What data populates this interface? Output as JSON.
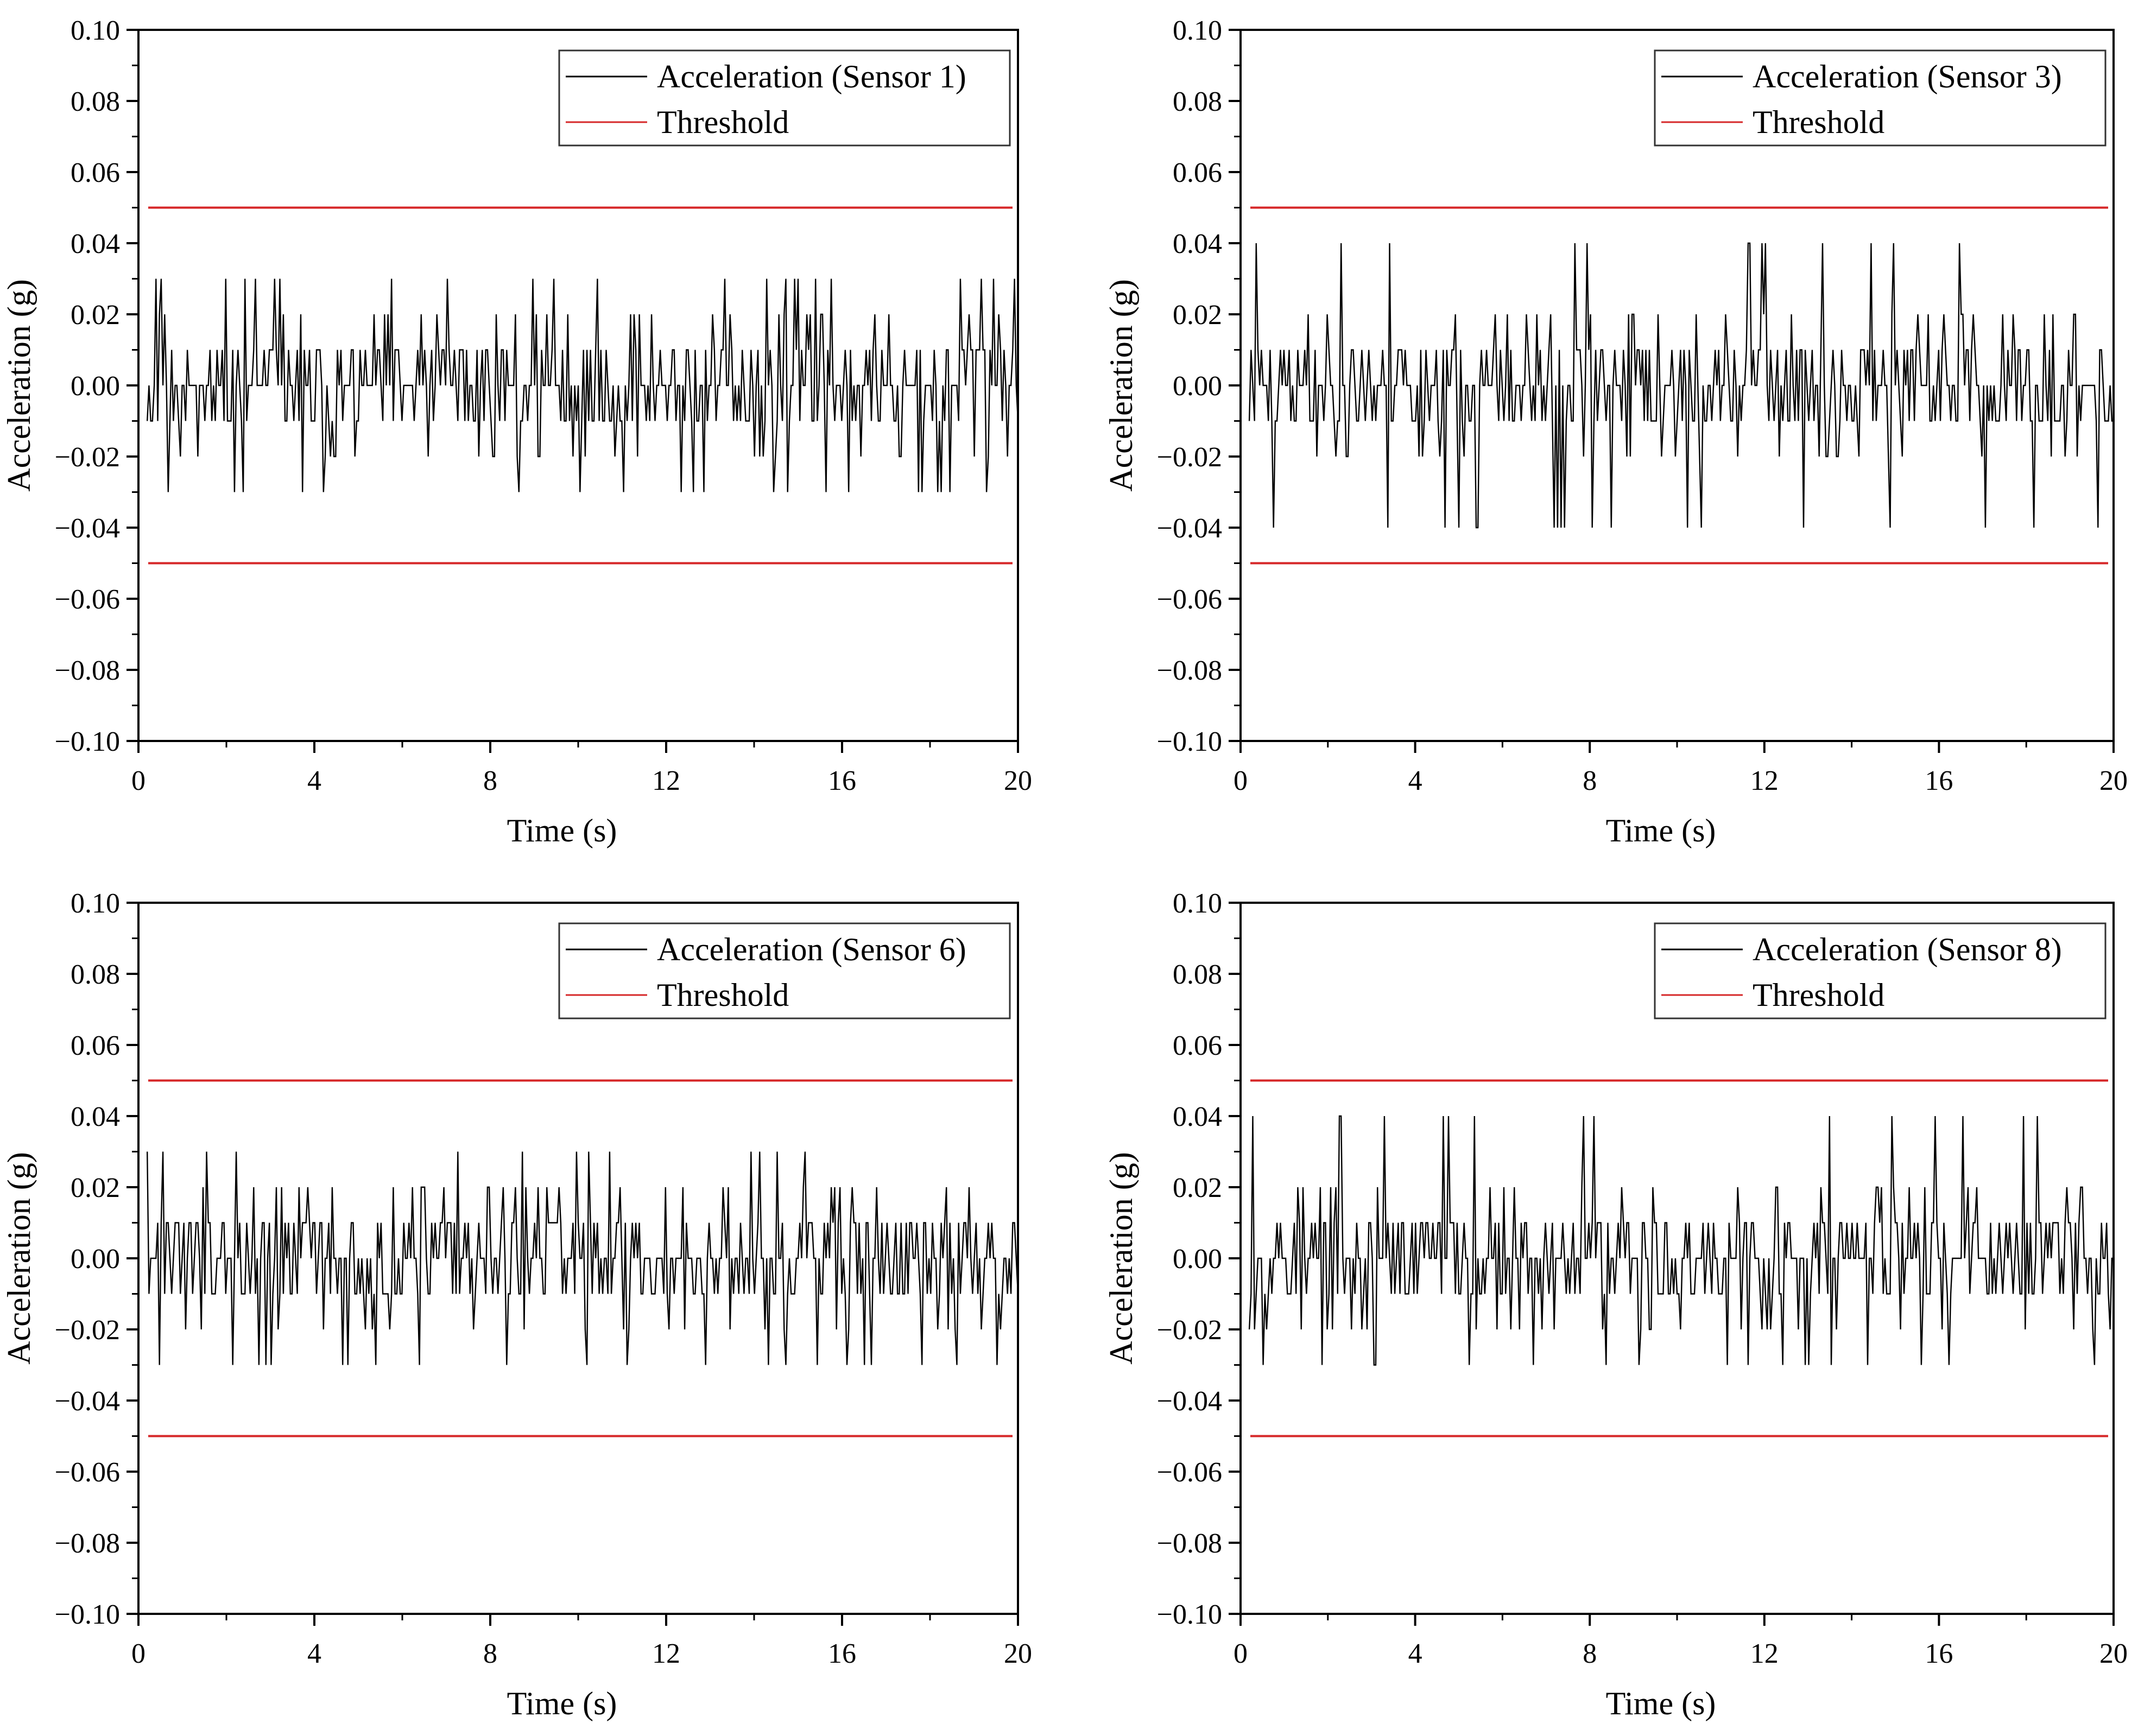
{
  "figure": {
    "panels_count": 4
  },
  "colors": {
    "signal": "#000000",
    "threshold": "#d62728",
    "axis": "#000000",
    "legend_border": "#333333"
  },
  "chart_data": [
    {
      "type": "line",
      "panel": "sensor-1",
      "title": "",
      "xlabel": "Time (s)",
      "ylabel": "Acceleration (g)",
      "xlim": [
        0,
        20
      ],
      "ylim": [
        -0.1,
        0.1
      ],
      "xticks": [
        0,
        4,
        8,
        12,
        16,
        20
      ],
      "xtick_labels": [
        "0",
        "4",
        "8",
        "12",
        "16",
        "20"
      ],
      "yticks": [
        0.1,
        0.08,
        0.06,
        0.04,
        0.02,
        0.0,
        -0.02,
        -0.04,
        -0.06,
        -0.08,
        -0.1
      ],
      "ytick_labels": [
        "0.10",
        "0.08",
        "0.06",
        "0.04",
        "0.02",
        "0.00",
        "−0.02",
        "−0.04",
        "−0.06",
        "−0.08",
        "−0.10"
      ],
      "legend": [
        "Acceleration (Sensor 1)",
        "Threshold"
      ],
      "legend_position": "top-right",
      "series": [
        {
          "name": "Acceleration (Sensor 1)",
          "x_start": 0.2,
          "x_end": 20.0,
          "sample_count": 500,
          "value_step": 0.01,
          "max": 0.03,
          "min": -0.03,
          "seed": 11
        },
        {
          "name": "Threshold",
          "values": [
            0.05,
            -0.05
          ],
          "x_start": 0,
          "x_end": 20
        }
      ]
    },
    {
      "type": "line",
      "panel": "sensor-3",
      "title": "",
      "xlabel": "Time (s)",
      "ylabel": "Acceleration (g)",
      "xlim": [
        0,
        20
      ],
      "ylim": [
        -0.1,
        0.1
      ],
      "xticks": [
        0,
        4,
        8,
        12,
        16,
        20
      ],
      "xtick_labels": [
        "0",
        "4",
        "8",
        "12",
        "16",
        "20"
      ],
      "yticks": [
        0.1,
        0.08,
        0.06,
        0.04,
        0.02,
        0.0,
        -0.02,
        -0.04,
        -0.06,
        -0.08,
        -0.1
      ],
      "ytick_labels": [
        "0.10",
        "0.08",
        "0.06",
        "0.04",
        "0.02",
        "0.00",
        "−0.02",
        "−0.04",
        "−0.06",
        "−0.08",
        "−0.10"
      ],
      "legend": [
        "Acceleration (Sensor 3)",
        "Threshold"
      ],
      "legend_position": "top-right",
      "series": [
        {
          "name": "Acceleration (Sensor 3)",
          "x_start": 0.2,
          "x_end": 20.0,
          "sample_count": 500,
          "value_step": 0.01,
          "max": 0.04,
          "min": -0.04,
          "seed": 23
        },
        {
          "name": "Threshold",
          "values": [
            0.05,
            -0.05
          ],
          "x_start": 0,
          "x_end": 20
        }
      ]
    },
    {
      "type": "line",
      "panel": "sensor-6",
      "title": "",
      "xlabel": "Time (s)",
      "ylabel": "Acceleration (g)",
      "xlim": [
        0,
        20
      ],
      "ylim": [
        -0.1,
        0.1
      ],
      "xticks": [
        0,
        4,
        8,
        12,
        16,
        20
      ],
      "xtick_labels": [
        "0",
        "4",
        "8",
        "12",
        "16",
        "20"
      ],
      "yticks": [
        0.1,
        0.08,
        0.06,
        0.04,
        0.02,
        0.0,
        -0.02,
        -0.04,
        -0.06,
        -0.08,
        -0.1
      ],
      "ytick_labels": [
        "0.10",
        "0.08",
        "0.06",
        "0.04",
        "0.02",
        "0.00",
        "−0.02",
        "−0.04",
        "−0.06",
        "−0.08",
        "−0.10"
      ],
      "legend": [
        "Acceleration (Sensor 6)",
        "Threshold"
      ],
      "legend_position": "top-right",
      "series": [
        {
          "name": "Acceleration (Sensor 6)",
          "x_start": 0.2,
          "x_end": 20.0,
          "sample_count": 500,
          "value_step": 0.01,
          "max": 0.03,
          "min": -0.03,
          "seed": 37
        },
        {
          "name": "Threshold",
          "values": [
            0.05,
            -0.05
          ],
          "x_start": 0,
          "x_end": 20
        }
      ]
    },
    {
      "type": "line",
      "panel": "sensor-8",
      "title": "",
      "xlabel": "Time (s)",
      "ylabel": "Acceleration (g)",
      "xlim": [
        0,
        20
      ],
      "ylim": [
        -0.1,
        0.1
      ],
      "xticks": [
        0,
        4,
        8,
        12,
        16,
        20
      ],
      "xtick_labels": [
        "0",
        "4",
        "8",
        "12",
        "16",
        "20"
      ],
      "yticks": [
        0.1,
        0.08,
        0.06,
        0.04,
        0.02,
        0.0,
        -0.02,
        -0.04,
        -0.06,
        -0.08,
        -0.1
      ],
      "ytick_labels": [
        "0.10",
        "0.08",
        "0.06",
        "0.04",
        "0.02",
        "0.00",
        "−0.02",
        "−0.04",
        "−0.06",
        "−0.08",
        "−0.10"
      ],
      "legend": [
        "Acceleration (Sensor 8)",
        "Threshold"
      ],
      "legend_position": "top-right",
      "series": [
        {
          "name": "Acceleration (Sensor 8)",
          "x_start": 0.2,
          "x_end": 20.0,
          "sample_count": 500,
          "value_step": 0.01,
          "max": 0.04,
          "min": -0.03,
          "seed": 53
        },
        {
          "name": "Threshold",
          "values": [
            0.05,
            -0.05
          ],
          "x_start": 0,
          "x_end": 20
        }
      ]
    }
  ]
}
